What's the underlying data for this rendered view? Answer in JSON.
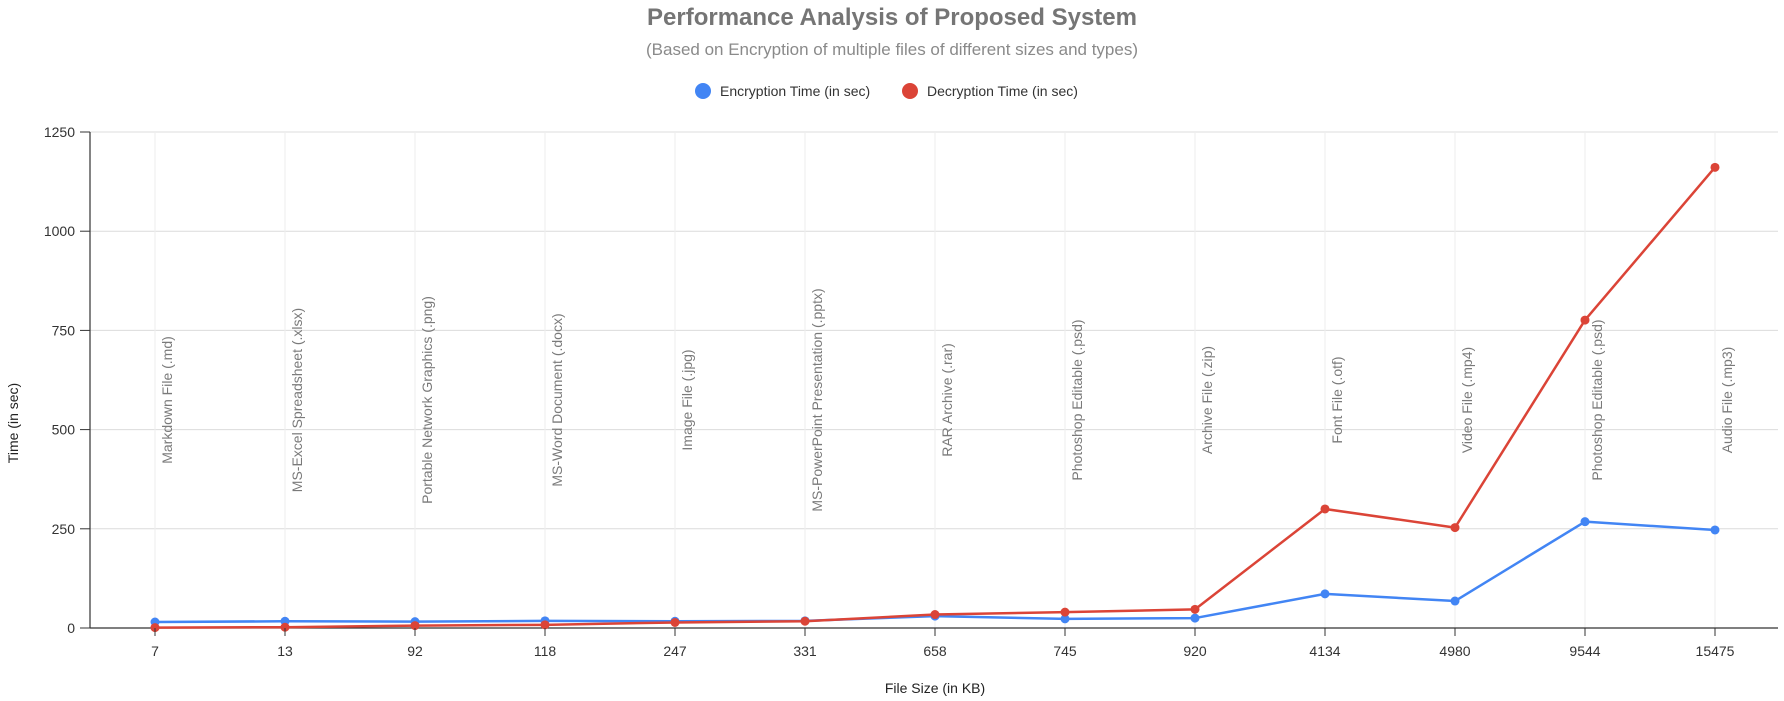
{
  "chart_data": {
    "type": "line",
    "title": "Performance Analysis of Proposed System",
    "subtitle": "(Based on Encryption of multiple files of different sizes and types)",
    "xlabel": "File Size (in KB)",
    "ylabel": "Time (in sec)",
    "categories": [
      "7",
      "13",
      "92",
      "118",
      "247",
      "331",
      "658",
      "745",
      "920",
      "4134",
      "4980",
      "9544",
      "15475"
    ],
    "annotations": [
      "Markdown File (.md)",
      "MS-Excel Spreadsheet (.xlsx)",
      "Portable Network Graphics (.png)",
      "MS-Word Document (.docx)",
      "Image File (.jpg)",
      "MS-PowerPoint Presentation (.pptx)",
      "RAR Archive (.rar)",
      "Photoshop Editable (.psd)",
      "Archive File (.zip)",
      "Font File (.otf)",
      "Video File (.mp4)",
      "Photoshop Editable (.psd)",
      "Audio File (.mp3)"
    ],
    "series": [
      {
        "name": "Encryption Time (in sec)",
        "color": "#4285f4",
        "values": [
          15,
          17,
          16,
          18,
          17,
          18,
          30,
          23,
          25,
          86,
          68,
          268,
          247
        ]
      },
      {
        "name": "Decryption Time (in sec)",
        "color": "#db4437",
        "values": [
          1,
          2,
          6,
          8,
          14,
          17,
          34,
          40,
          47,
          300,
          253,
          776,
          1161
        ]
      }
    ],
    "ylim": [
      0,
      1250
    ],
    "yticks": [
      0,
      250,
      500,
      750,
      1000,
      1250
    ],
    "grid": true,
    "legend": "top-center"
  }
}
